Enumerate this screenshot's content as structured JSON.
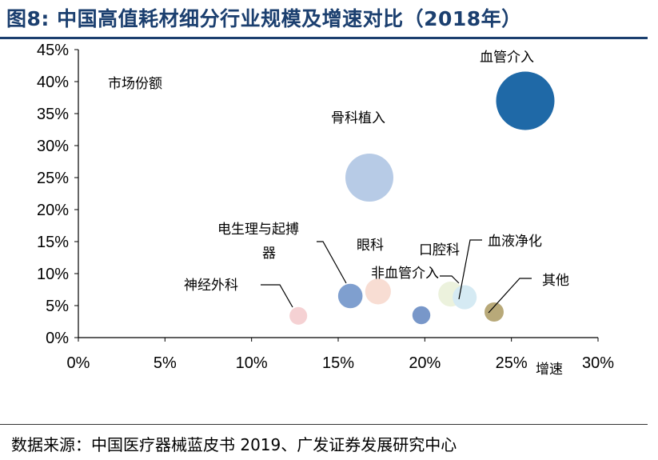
{
  "title": "图8: 中国高值耗材细分行业规模及增速对比（2018年）",
  "source": "数据来源：中国医疗器械蓝皮书 2019、广发证券发展研究中心",
  "chart_data": {
    "type": "scatter",
    "title": "图8: 中国高值耗材细分行业规模及增速对比（2018年）",
    "xlabel": "增速",
    "ylabel": "市场份额",
    "xlim": [
      0,
      30
    ],
    "ylim": [
      0,
      45
    ],
    "x_ticks": [
      "0%",
      "5%",
      "10%",
      "15%",
      "20%",
      "25%",
      "30%"
    ],
    "y_ticks": [
      "0%",
      "5%",
      "10%",
      "15%",
      "20%",
      "25%",
      "30%",
      "35%",
      "40%",
      "45%"
    ],
    "grid": false,
    "points": [
      {
        "label": "血管介入",
        "x": 25.8,
        "y": 37,
        "size": 37,
        "color": "#1f69a7"
      },
      {
        "label": "骨科植入",
        "x": 16.8,
        "y": 25,
        "size": 25,
        "color": "#b7cbe6"
      },
      {
        "label": "电生理与起搏器",
        "x": 15.7,
        "y": 6.5,
        "size": 6.5,
        "color": "#7f9fcf"
      },
      {
        "label": "眼科",
        "x": 17.3,
        "y": 7.2,
        "size": 7.2,
        "color": "#f8ddd3"
      },
      {
        "label": "非血管介入",
        "x": 19.8,
        "y": 3.5,
        "size": 3.5,
        "color": "#7897c9"
      },
      {
        "label": "口腔科",
        "x": 21.5,
        "y": 6.8,
        "size": 6.8,
        "color": "#ecf2dd"
      },
      {
        "label": "血液净化",
        "x": 22.3,
        "y": 6.3,
        "size": 6.3,
        "color": "#d5eaf3"
      },
      {
        "label": "神经外科",
        "x": 12.7,
        "y": 3.4,
        "size": 3.4,
        "color": "#f5d1d3"
      },
      {
        "label": "其他",
        "x": 24.0,
        "y": 4.0,
        "size": 4.0,
        "color": "#b8a979"
      }
    ]
  }
}
